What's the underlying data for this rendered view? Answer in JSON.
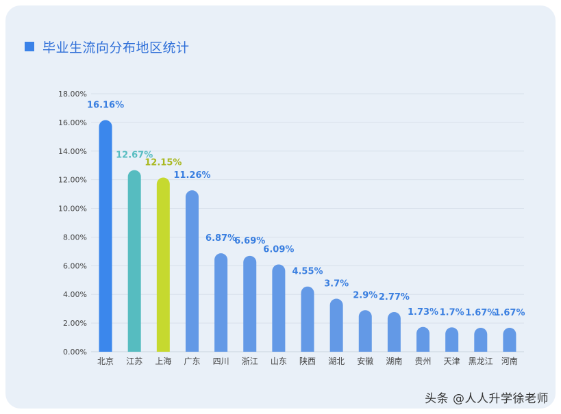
{
  "title": "毕业生流向分布地区统计",
  "watermark": "头条 @人人升学徐老师",
  "chart_data": {
    "type": "bar",
    "title": "毕业生流向分布地区统计",
    "xlabel": "",
    "ylabel": "",
    "ylim": [
      0,
      18
    ],
    "yticks": [
      "0.00%",
      "2.00%",
      "4.00%",
      "6.00%",
      "8.00%",
      "10.00%",
      "12.00%",
      "14.00%",
      "16.00%",
      "18.00%"
    ],
    "grid": true,
    "categories": [
      "北京",
      "江苏",
      "上海",
      "广东",
      "四川",
      "浙江",
      "山东",
      "陕西",
      "湖北",
      "安徽",
      "湖南",
      "贵州",
      "天津",
      "黑龙江",
      "河南"
    ],
    "values": [
      16.16,
      12.67,
      12.15,
      11.26,
      6.87,
      6.69,
      6.09,
      4.55,
      3.7,
      2.9,
      2.77,
      1.73,
      1.7,
      1.67,
      1.67
    ],
    "labels": [
      "16.16%",
      "12.67%",
      "12.15%",
      "11.26%",
      "6.87%",
      "6.69%",
      "6.09%",
      "4.55%",
      "3.7%",
      "2.9%",
      "2.77%",
      "1.73%",
      "1.7%",
      "1.67%",
      "1.67%"
    ],
    "colors": [
      "#3b87ec",
      "#56bcc0",
      "#c6d92f",
      "#6399e6",
      "#6399e6",
      "#6399e6",
      "#6399e6",
      "#6399e6",
      "#6399e6",
      "#6399e6",
      "#6399e6",
      "#6399e6",
      "#6399e6",
      "#6399e6",
      "#6399e6"
    ],
    "label_colors": [
      "#3a7fe0",
      "#56bcc0",
      "#a9b820",
      "#3a7fe0",
      "#3a7fe0",
      "#3a7fe0",
      "#3a7fe0",
      "#3a7fe0",
      "#3a7fe0",
      "#3a7fe0",
      "#3a7fe0",
      "#3a7fe0",
      "#3a7fe0",
      "#3a7fe0",
      "#3a7fe0"
    ]
  }
}
